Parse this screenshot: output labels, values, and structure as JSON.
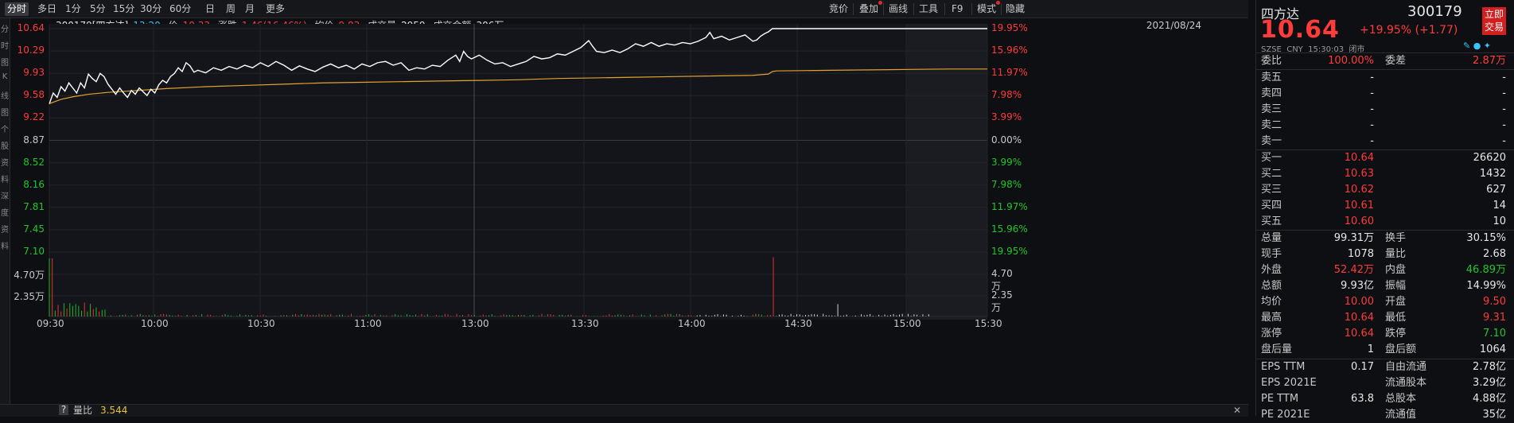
{
  "toolbar": {
    "periods": [
      "分时",
      "多日",
      "1分",
      "5分",
      "15分",
      "30分",
      "60分",
      "日",
      "周",
      "月",
      "更多"
    ],
    "active_period": "分时",
    "tools": [
      "竞价",
      "叠加",
      "画线",
      "工具",
      "F9",
      "模式",
      "隐藏"
    ]
  },
  "info": {
    "code_name": "300179[四方达]",
    "time": "13:20",
    "price_label": "价",
    "price": "10.33",
    "change_label": "涨跌",
    "change": "1.46(16.46%)",
    "avg_label": "均价",
    "avg": "9.83",
    "volume_label": "成交量",
    "volume": "2959",
    "amount_label": "成交金额",
    "amount": "306万",
    "date": "2021/08/24"
  },
  "left_strip_chars": [
    "分",
    "时",
    "图",
    "K",
    "线",
    "图",
    "个",
    "股",
    "资",
    "料",
    "深",
    "度",
    "资",
    "料"
  ],
  "chart_data": {
    "type": "line",
    "price_axis": [
      "10.64",
      "10.29",
      "9.93",
      "9.58",
      "9.22",
      "8.87",
      "8.52",
      "8.16",
      "7.81",
      "7.45",
      "7.10"
    ],
    "pct_axis": [
      "19.95%",
      "15.96%",
      "11.97%",
      "7.98%",
      "3.99%",
      "0.00%",
      "3.99%",
      "7.98%",
      "11.97%",
      "15.96%",
      "19.95%"
    ],
    "volume_axis": [
      "4.70万",
      "2.35万"
    ],
    "time_axis": [
      "09:30",
      "10:00",
      "10:30",
      "11:00",
      "13:00",
      "13:30",
      "14:00",
      "14:30",
      "15:00",
      "15:30"
    ],
    "pre_close": 8.87,
    "ylim": [
      7.1,
      10.64
    ],
    "price_series": [
      [
        0,
        9.45
      ],
      [
        2,
        9.62
      ],
      [
        4,
        9.55
      ],
      [
        6,
        9.72
      ],
      [
        8,
        9.65
      ],
      [
        10,
        9.78
      ],
      [
        12,
        9.7
      ],
      [
        14,
        9.62
      ],
      [
        16,
        9.78
      ],
      [
        18,
        9.7
      ],
      [
        20,
        9.92
      ],
      [
        22,
        9.85
      ],
      [
        24,
        9.8
      ],
      [
        26,
        9.93
      ],
      [
        28,
        9.88
      ],
      [
        30,
        9.76
      ],
      [
        32,
        9.68
      ],
      [
        34,
        9.6
      ],
      [
        36,
        9.7
      ],
      [
        38,
        9.62
      ],
      [
        40,
        9.55
      ],
      [
        42,
        9.66
      ],
      [
        44,
        9.6
      ],
      [
        46,
        9.7
      ],
      [
        48,
        9.64
      ],
      [
        50,
        9.58
      ],
      [
        52,
        9.68
      ],
      [
        54,
        9.62
      ],
      [
        56,
        9.75
      ],
      [
        58,
        9.82
      ],
      [
        60,
        9.78
      ],
      [
        62,
        9.88
      ],
      [
        64,
        9.93
      ],
      [
        66,
        10.02
      ],
      [
        68,
        9.96
      ],
      [
        70,
        10.1
      ],
      [
        72,
        10.05
      ],
      [
        74,
        9.95
      ],
      [
        76,
        9.98
      ],
      [
        80,
        9.94
      ],
      [
        84,
        10.02
      ],
      [
        88,
        9.98
      ],
      [
        92,
        10.04
      ],
      [
        96,
        10.0
      ],
      [
        100,
        10.06
      ],
      [
        104,
        10.02
      ],
      [
        108,
        10.1
      ],
      [
        112,
        10.04
      ],
      [
        116,
        10.12
      ],
      [
        120,
        10.06
      ],
      [
        124,
        9.98
      ],
      [
        128,
        10.05
      ],
      [
        132,
        10.0
      ],
      [
        136,
        9.96
      ],
      [
        140,
        10.03
      ],
      [
        144,
        10.08
      ],
      [
        148,
        10.02
      ],
      [
        152,
        10.06
      ],
      [
        156,
        10.0
      ],
      [
        160,
        10.08
      ],
      [
        164,
        10.04
      ],
      [
        168,
        10.1
      ],
      [
        172,
        10.12
      ],
      [
        176,
        10.06
      ],
      [
        180,
        10.1
      ],
      [
        184,
        9.98
      ],
      [
        188,
        10.02
      ],
      [
        192,
        10.0
      ],
      [
        196,
        10.06
      ],
      [
        200,
        10.04
      ],
      [
        204,
        10.14
      ],
      [
        208,
        10.22
      ],
      [
        210,
        10.12
      ],
      [
        212,
        10.28
      ],
      [
        214,
        10.2
      ],
      [
        216,
        10.16
      ],
      [
        220,
        10.22
      ],
      [
        224,
        10.14
      ],
      [
        228,
        10.08
      ],
      [
        232,
        10.1
      ],
      [
        236,
        10.04
      ],
      [
        240,
        10.08
      ],
      [
        244,
        10.12
      ],
      [
        248,
        10.2
      ],
      [
        252,
        10.16
      ],
      [
        256,
        10.18
      ],
      [
        260,
        10.24
      ],
      [
        264,
        10.22
      ],
      [
        268,
        10.28
      ],
      [
        272,
        10.34
      ],
      [
        276,
        10.45
      ],
      [
        278,
        10.36
      ],
      [
        280,
        10.28
      ],
      [
        284,
        10.26
      ],
      [
        288,
        10.3
      ],
      [
        292,
        10.26
      ],
      [
        296,
        10.32
      ],
      [
        300,
        10.4
      ],
      [
        304,
        10.36
      ],
      [
        308,
        10.42
      ],
      [
        312,
        10.36
      ],
      [
        316,
        10.4
      ],
      [
        320,
        10.38
      ],
      [
        324,
        10.42
      ],
      [
        328,
        10.4
      ],
      [
        332,
        10.44
      ],
      [
        336,
        10.5
      ],
      [
        338,
        10.58
      ],
      [
        340,
        10.48
      ],
      [
        344,
        10.52
      ],
      [
        348,
        10.46
      ],
      [
        352,
        10.5
      ],
      [
        356,
        10.54
      ],
      [
        360,
        10.44
      ],
      [
        362,
        10.46
      ],
      [
        364,
        10.52
      ],
      [
        366,
        10.56
      ],
      [
        368,
        10.59
      ],
      [
        370,
        10.64
      ],
      [
        372,
        10.64
      ],
      [
        410,
        10.64
      ],
      [
        450,
        10.64
      ],
      [
        480,
        10.64
      ]
    ],
    "avg_series": [
      [
        0,
        9.45
      ],
      [
        6,
        9.52
      ],
      [
        12,
        9.56
      ],
      [
        20,
        9.6
      ],
      [
        30,
        9.63
      ],
      [
        45,
        9.66
      ],
      [
        60,
        9.69
      ],
      [
        80,
        9.72
      ],
      [
        100,
        9.74
      ],
      [
        120,
        9.76
      ],
      [
        140,
        9.78
      ],
      [
        160,
        9.79
      ],
      [
        180,
        9.8
      ],
      [
        200,
        9.81
      ],
      [
        220,
        9.82
      ],
      [
        240,
        9.83
      ],
      [
        260,
        9.85
      ],
      [
        280,
        9.86
      ],
      [
        300,
        9.87
      ],
      [
        320,
        9.88
      ],
      [
        340,
        9.89
      ],
      [
        360,
        9.9
      ],
      [
        368,
        9.92
      ],
      [
        370,
        9.96
      ],
      [
        372,
        9.97
      ],
      [
        400,
        9.98
      ],
      [
        430,
        9.99
      ],
      [
        460,
        10.0
      ],
      [
        480,
        10.0
      ]
    ],
    "volume_series_max": 4.7
  },
  "panel": {
    "name": "四方达",
    "code": "300179",
    "price": "10.64",
    "change": "+19.95% (+1.77)",
    "market_line": "SZSE  CNY  15:30:03  闭市",
    "trade_btn": [
      "立即",
      "交易"
    ],
    "weibi_label": "委比",
    "weibi": "100.00%",
    "weicha_label": "委差",
    "weicha": "2.87万",
    "asks": [
      {
        "label": "卖五",
        "price": "-",
        "vol": "-"
      },
      {
        "label": "卖四",
        "price": "-",
        "vol": "-"
      },
      {
        "label": "卖三",
        "price": "-",
        "vol": "-"
      },
      {
        "label": "卖二",
        "price": "-",
        "vol": "-"
      },
      {
        "label": "卖一",
        "price": "-",
        "vol": "-"
      }
    ],
    "bids": [
      {
        "label": "买一",
        "price": "10.64",
        "vol": "26620"
      },
      {
        "label": "买二",
        "price": "10.63",
        "vol": "1432"
      },
      {
        "label": "买三",
        "price": "10.62",
        "vol": "627"
      },
      {
        "label": "买四",
        "price": "10.61",
        "vol": "14"
      },
      {
        "label": "买五",
        "price": "10.60",
        "vol": "10"
      }
    ],
    "stats": [
      {
        "k1": "总量",
        "v1": "99.31万",
        "c1": "white",
        "k2": "换手",
        "v2": "30.15%",
        "c2": "white"
      },
      {
        "k1": "现手",
        "v1": "1078",
        "c1": "white",
        "k2": "量比",
        "v2": "2.68",
        "c2": "white"
      },
      {
        "k1": "外盘",
        "v1": "52.42万",
        "c1": "red",
        "k2": "内盘",
        "v2": "46.89万",
        "c2": "green"
      },
      {
        "k1": "总额",
        "v1": "9.93亿",
        "c1": "white",
        "k2": "振幅",
        "v2": "14.99%",
        "c2": "white"
      },
      {
        "k1": "均价",
        "v1": "10.00",
        "c1": "red",
        "k2": "开盘",
        "v2": "9.50",
        "c2": "red"
      },
      {
        "k1": "最高",
        "v1": "10.64",
        "c1": "red",
        "k2": "最低",
        "v2": "9.31",
        "c2": "red"
      },
      {
        "k1": "涨停",
        "v1": "10.64",
        "c1": "red",
        "k2": "跌停",
        "v2": "7.10",
        "c2": "green"
      },
      {
        "k1": "盘后量",
        "v1": "1",
        "c1": "white",
        "k2": "盘后额",
        "v2": "1064",
        "c2": "white"
      }
    ],
    "fund": [
      {
        "k1": "EPS TTM",
        "v1": "0.17",
        "k2": "自由流通",
        "v2": "2.78亿"
      },
      {
        "k1": "EPS 2021E",
        "v1": "",
        "k2": "流通股本",
        "v2": "3.29亿"
      },
      {
        "k1": "PE TTM",
        "v1": "63.8",
        "k2": "总股本",
        "v2": "4.88亿"
      },
      {
        "k1": "PE 2021E",
        "v1": "",
        "k2": "流通值",
        "v2": "35亿"
      }
    ]
  },
  "bottom": {
    "help": "?",
    "label": "量比",
    "value": "3.544"
  }
}
